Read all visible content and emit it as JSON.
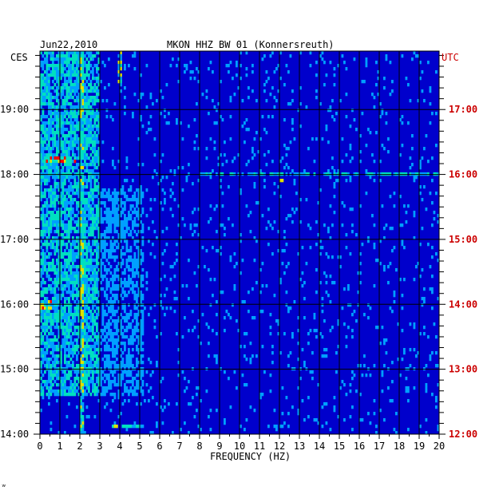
{
  "header": {
    "date": "Jun22,2010",
    "station": "MKON HHZ BW 01 (Konnersreuth)"
  },
  "left_axis_label": "CES",
  "right_axis_label": "UTC",
  "footer_mark": "ʷ",
  "colors": {
    "background": "#0000cc",
    "grid": "#000000",
    "utc_labels": "#cc0000",
    "low": "#0000cc",
    "mid": "#00a0ff",
    "high": "#00e0c0",
    "hot": "#e0e000",
    "peak": "#ff0000"
  },
  "chart_data": {
    "type": "heatmap",
    "title": "MKON HHZ BW 01 (Konnersreuth)",
    "xlabel": "FREQUENCY (HZ)",
    "ylabel_left": "CES",
    "ylabel_right": "UTC",
    "xlim": [
      0,
      20
    ],
    "x_ticks": [
      "0",
      "1",
      "2",
      "3",
      "4",
      "5",
      "6",
      "7",
      "8",
      "9",
      "10",
      "11",
      "12",
      "13",
      "14",
      "15",
      "16",
      "17",
      "18",
      "19",
      "20"
    ],
    "left_time_ticks": [
      {
        "label": "14:00",
        "hours": 14
      },
      {
        "label": "15:00",
        "hours": 15
      },
      {
        "label": "16:00",
        "hours": 16
      },
      {
        "label": "17:00",
        "hours": 17
      },
      {
        "label": "18:00",
        "hours": 18
      },
      {
        "label": "19:00",
        "hours": 19
      }
    ],
    "right_time_ticks": [
      {
        "label": "12:00",
        "hours": 12
      },
      {
        "label": "13:00",
        "hours": 13
      },
      {
        "label": "14:00",
        "hours": 14
      },
      {
        "label": "15:00",
        "hours": 15
      },
      {
        "label": "16:00",
        "hours": 16
      },
      {
        "label": "17:00",
        "hours": 17
      }
    ],
    "time_range_ces": [
      14.0,
      19.9
    ],
    "features": [
      {
        "freq_range": [
          0,
          3
        ],
        "time_range_ces": [
          14.6,
          19.9
        ],
        "intensity": "high"
      },
      {
        "freq_range": [
          3,
          5.2
        ],
        "time_range_ces": [
          14.6,
          17.8
        ],
        "intensity": "mid"
      },
      {
        "freq_range": [
          2,
          2.2
        ],
        "time_range_ces": [
          14.0,
          19.9
        ],
        "intensity": "hot"
      },
      {
        "freq_range": [
          3.9,
          4.1
        ],
        "time_range_ces": [
          19.4,
          19.9
        ],
        "intensity": "hot"
      },
      {
        "freq_range": [
          0.2,
          1.8
        ],
        "time_range_ces": [
          18.2,
          18.3
        ],
        "intensity": "peak"
      },
      {
        "freq_range": [
          0,
          0.6
        ],
        "time_range_ces": [
          15.9,
          16.05
        ],
        "intensity": "peak"
      },
      {
        "freq_range": [
          3.5,
          5.2
        ],
        "time_range_ces": [
          14.1,
          14.15
        ],
        "intensity": "hot"
      },
      {
        "freq_range": [
          8,
          20
        ],
        "time_range_ces": [
          18.0,
          18.02
        ],
        "intensity": "high"
      },
      {
        "freq_range": [
          12,
          12.2
        ],
        "time_range_ces": [
          17.9,
          17.95
        ],
        "intensity": "hot"
      }
    ]
  }
}
